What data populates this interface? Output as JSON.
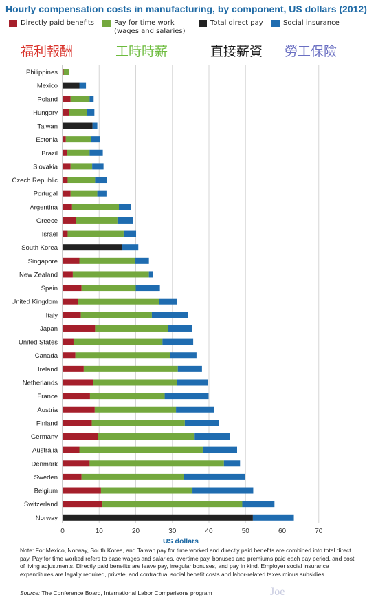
{
  "title": "Hourly compensation costs in manufacturing, by component, US dollars (2012)",
  "legend": [
    {
      "label": "Directly paid benefits",
      "sub": "",
      "color": "#a51f2b"
    },
    {
      "label": "Pay for time work",
      "sub": "(wages and salaries)",
      "color": "#74a83e"
    },
    {
      "label": "Total direct pay",
      "sub": "",
      "color": "#222222"
    },
    {
      "label": "Social insurance",
      "sub": "",
      "color": "#1f6cb0"
    }
  ],
  "cjk_labels": [
    {
      "text": "福利報酬",
      "color": "#d9342c"
    },
    {
      "text": "工時時薪",
      "color": "#6cbb3c"
    },
    {
      "text": "直接薪資",
      "color": "#1a1a1a"
    },
    {
      "text": "勞工保險",
      "color": "#6a6fc2"
    }
  ],
  "note": "Note: For Mexico, Norway, South Korea, and Taiwan pay for time worked and directly paid benefits are combined into total direct pay. Pay for time worked refers to base wages and salaries, overtime pay, bonuses and premiums paid each pay period, and cost of living adjustments. Directly paid benefits are leave pay, irregular bonuses, and pay in kind. Employer social insurance expenditures are legally required, private, and contractual social benefit costs and labor-related taxes minus subsidies.",
  "source_label": "Source:",
  "source_text": " The Conference Board, International Labor Comparisons program",
  "signature": "Joe",
  "chart_data": {
    "type": "bar",
    "orientation": "horizontal",
    "stacked": true,
    "title": "Hourly compensation costs in manufacturing, by component, US dollars (2012)",
    "xlabel": "US dollars",
    "xlim": [
      0,
      70
    ],
    "xticks": [
      0,
      10,
      20,
      30,
      40,
      50,
      60,
      70
    ],
    "grid": "vertical",
    "legend_position": "top",
    "categories": [
      "Philippines",
      "Mexico",
      "Poland",
      "Hungary",
      "Taiwan",
      "Estonia",
      "Brazil",
      "Slovakia",
      "Czech Republic",
      "Portugal",
      "Argentina",
      "Greece",
      "Israel",
      "South Korea",
      "Singapore",
      "New Zealand",
      "Spain",
      "United Kingdom",
      "Italy",
      "Japan",
      "United States",
      "Canada",
      "Ireland",
      "Netherlands",
      "France",
      "Austria",
      "Finland",
      "Germany",
      "Australia",
      "Denmark",
      "Sweden",
      "Belgium",
      "Switzerland",
      "Norway"
    ],
    "series": [
      {
        "name": "Directly paid benefits",
        "color": "#a51f2b",
        "values": [
          0.3,
          0,
          2.2,
          1.7,
          0,
          0.9,
          1.2,
          2.2,
          1.4,
          2.2,
          2.6,
          3.6,
          1.4,
          0,
          4.6,
          2.8,
          5.2,
          4.3,
          5.0,
          8.9,
          3.0,
          3.5,
          5.8,
          8.3,
          7.5,
          8.8,
          8.0,
          9.7,
          4.6,
          7.4,
          5.2,
          10.5,
          10.9,
          0
        ]
      },
      {
        "name": "Pay for time work (wages and salaries)",
        "color": "#74a83e",
        "values": [
          1.4,
          0,
          5.2,
          5.0,
          0,
          6.8,
          6.2,
          5.9,
          7.5,
          7.3,
          12.8,
          11.4,
          15.3,
          0,
          15.2,
          20.8,
          14.8,
          22.0,
          19.4,
          20.0,
          24.3,
          25.8,
          25.7,
          22.9,
          20.4,
          22.2,
          25.4,
          26.4,
          33.7,
          36.7,
          28.0,
          25.0,
          38.2,
          0
        ]
      },
      {
        "name": "Total direct pay",
        "color": "#222222",
        "values": [
          0,
          4.6,
          0,
          0,
          8.2,
          0,
          0,
          0,
          0,
          0,
          0,
          0,
          0,
          16.3,
          0,
          0,
          0,
          0,
          0,
          0,
          0,
          0,
          0,
          0,
          0,
          0,
          0,
          0,
          0,
          0,
          0,
          0,
          0,
          52.0
        ]
      },
      {
        "name": "Social insurance",
        "color": "#1f6cb0",
        "values": [
          0.1,
          1.8,
          1.1,
          2.0,
          1.3,
          2.5,
          3.6,
          3.1,
          3.2,
          2.5,
          3.3,
          4.2,
          3.4,
          4.4,
          3.8,
          1.0,
          6.6,
          5.0,
          9.8,
          6.5,
          8.4,
          7.3,
          6.6,
          8.5,
          12.0,
          10.5,
          9.3,
          9.7,
          9.4,
          4.4,
          16.6,
          16.6,
          8.8,
          11.2
        ]
      }
    ]
  }
}
